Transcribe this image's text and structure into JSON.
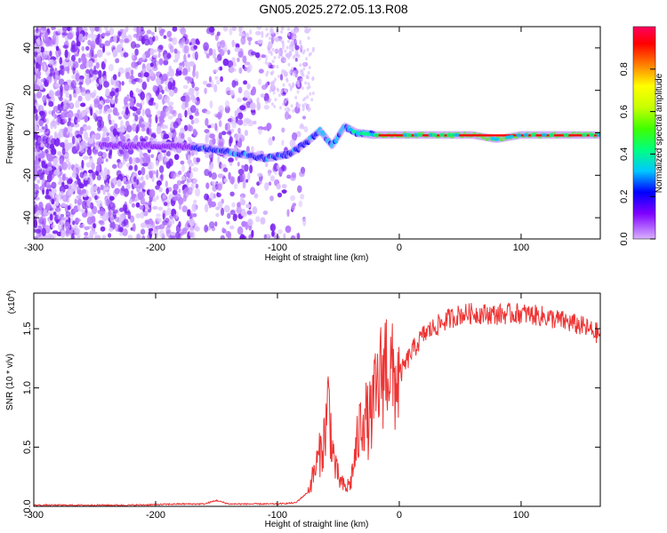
{
  "title": "GN05.2025.272.05.13.R08",
  "chart_data": [
    {
      "type": "heatmap",
      "title": "GN05.2025.272.05.13.R08",
      "xlabel": "Height of straight line (km)",
      "ylabel": "Frequency (Hz)",
      "xlim": [
        -300,
        165
      ],
      "ylim": [
        -50,
        50
      ],
      "xticks": [
        -300,
        -200,
        -100,
        0,
        100
      ],
      "yticks": [
        -40,
        -20,
        0,
        20,
        40
      ],
      "colorbar": {
        "label": "Normalized spectral amplitude",
        "range": [
          0,
          1
        ],
        "ticks": [
          "0.0",
          "0.2",
          "0.4",
          "0.6",
          "0.8"
        ],
        "colors": [
          "#d9b3ff",
          "#7f00ff",
          "#0000ff",
          "#00c8ff",
          "#00ff80",
          "#40ff00",
          "#c8ff00",
          "#ffff00",
          "#ff8000",
          "#ff0000",
          "#ff0060"
        ]
      },
      "ridge": {
        "description_points_x": [
          -240,
          -200,
          -160,
          -130,
          -110,
          -90,
          -75,
          -65,
          -55,
          -45,
          -35,
          -20,
          0,
          30,
          60,
          80,
          100,
          130,
          165
        ],
        "description_points_y": [
          -6,
          -6,
          -7,
          -10,
          -12,
          -10,
          -4,
          1,
          -6,
          3,
          0,
          -1,
          -1,
          -1,
          -1,
          -3,
          -1,
          -1,
          -1
        ]
      }
    },
    {
      "type": "line",
      "xlabel": "Height of straight line (km)",
      "ylabel": "SNR (10 * v/v)",
      "yscale_label": "(x10",
      "yscale_exp": "4",
      "yscale_close": ")",
      "xlim": [
        -300,
        165
      ],
      "ylim": [
        0,
        1.8
      ],
      "xticks": [
        -300,
        -200,
        -100,
        0,
        100
      ],
      "yticks": [
        "0.0",
        "0.5",
        "1.0",
        "1.5"
      ],
      "color": "#ee3333",
      "series": [
        {
          "name": "SNR",
          "x": [
            -300,
            -260,
            -220,
            -180,
            -160,
            -150,
            -140,
            -120,
            -100,
            -85,
            -75,
            -68,
            -62,
            -58,
            -55,
            -52,
            -48,
            -44,
            -40,
            -35,
            -30,
            -25,
            -20,
            -15,
            -10,
            -5,
            0,
            10,
            20,
            30,
            40,
            50,
            60,
            80,
            100,
            120,
            140,
            150,
            165
          ],
          "y": [
            0.01,
            0.01,
            0.01,
            0.02,
            0.02,
            0.05,
            0.02,
            0.02,
            0.02,
            0.03,
            0.12,
            0.35,
            0.55,
            0.9,
            0.5,
            0.3,
            0.2,
            0.15,
            0.2,
            0.5,
            0.8,
            0.7,
            0.9,
            1.1,
            1.25,
            1.05,
            1.1,
            1.3,
            1.45,
            1.52,
            1.58,
            1.62,
            1.63,
            1.62,
            1.63,
            1.6,
            1.55,
            1.52,
            1.45
          ]
        }
      ]
    }
  ]
}
